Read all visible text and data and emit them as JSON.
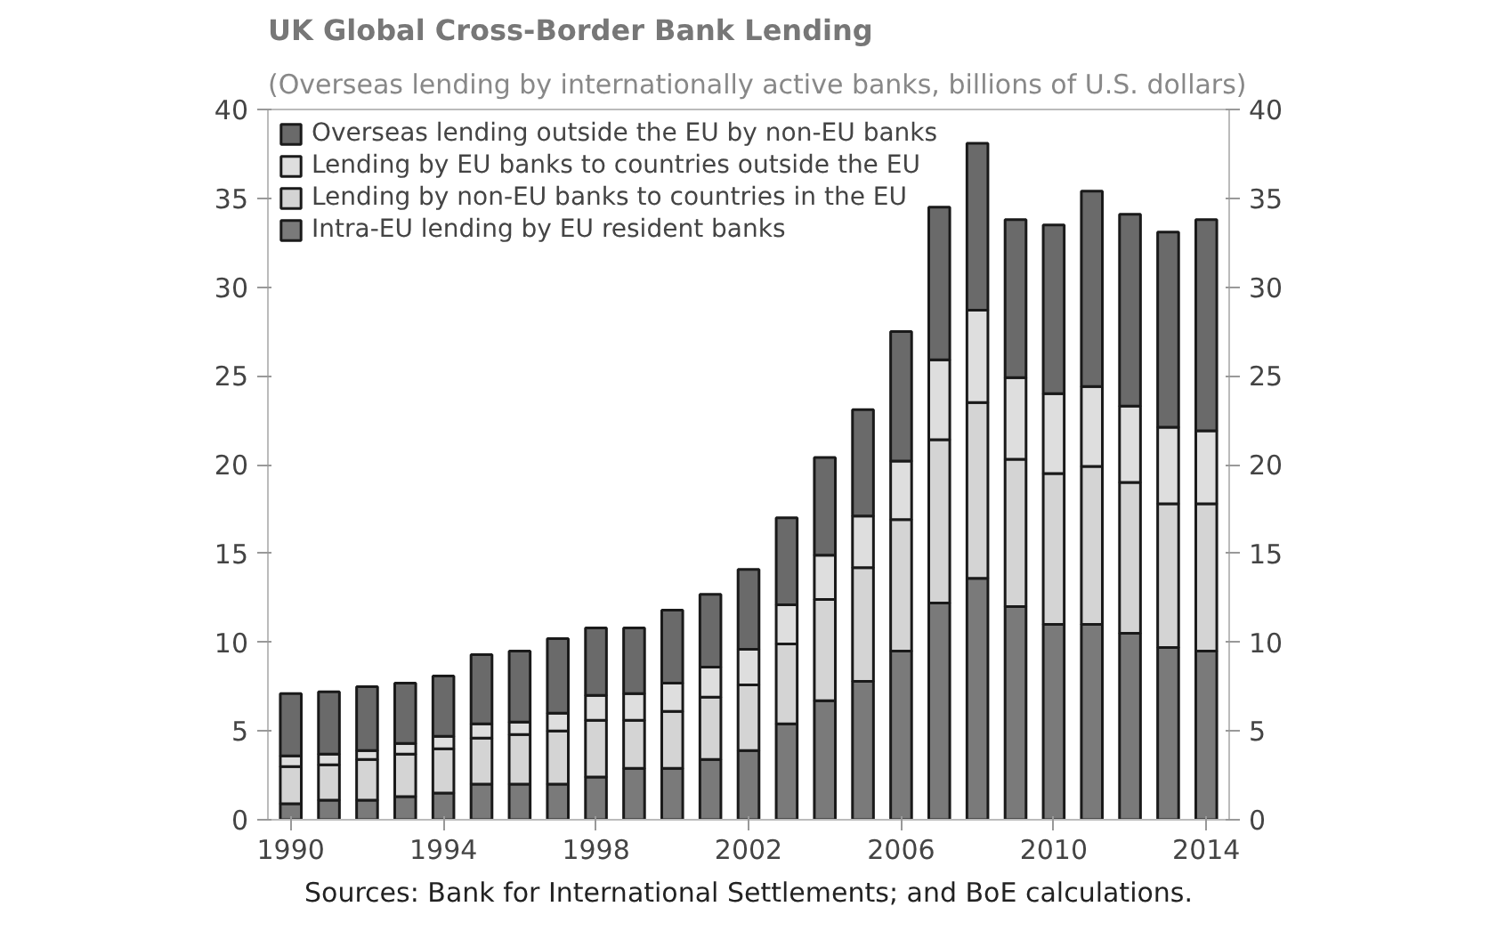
{
  "chart_data": {
    "type": "bar",
    "stacked": true,
    "title": "UK Global Cross-Border Bank Lending",
    "subtitle": "(Overseas lending by internationally active banks, billions of U.S. dollars)",
    "annotations": [
      "Sources: Bank for International Settlements; and BoE calculations."
    ],
    "x": [
      1990,
      1991,
      1992,
      1993,
      1994,
      1995,
      1996,
      1997,
      1998,
      1999,
      2000,
      2001,
      2002,
      2003,
      2004,
      2005,
      2006,
      2007,
      2008,
      2009,
      2010,
      2011,
      2012,
      2013,
      2014
    ],
    "xlim": [
      1989.4,
      2014.6
    ],
    "xticks": [
      1990,
      1994,
      1998,
      2002,
      2006,
      2010,
      2014
    ],
    "ylim": [
      0,
      40
    ],
    "yticks": [
      0,
      5,
      10,
      15,
      20,
      25,
      30,
      35,
      40
    ],
    "y2lim": [
      0,
      40
    ],
    "y2ticks": [
      0,
      5,
      10,
      15,
      20,
      25,
      30,
      35,
      40
    ],
    "grid": false,
    "legend": "top left",
    "series": [
      {
        "name": "Intra-EU lending by EU resident banks",
        "color": "#7a7a7a",
        "values": [
          0.9,
          1.1,
          1.1,
          1.3,
          1.5,
          2.0,
          2.0,
          2.0,
          2.4,
          2.9,
          2.9,
          3.4,
          3.9,
          5.4,
          6.7,
          7.8,
          9.5,
          12.2,
          13.6,
          12.0,
          11.0,
          11.0,
          10.5,
          9.7,
          9.5
        ]
      },
      {
        "name": "Lending by non-EU banks to countries in the EU",
        "color": "#d4d4d4",
        "values": [
          2.1,
          2.0,
          2.3,
          2.4,
          2.5,
          2.6,
          2.8,
          3.0,
          3.2,
          2.7,
          3.2,
          3.5,
          3.7,
          4.5,
          5.7,
          6.4,
          7.4,
          9.2,
          9.9,
          8.3,
          8.5,
          8.9,
          8.5,
          8.1,
          8.3
        ]
      },
      {
        "name": "Lending by EU banks to countries outside the EU",
        "color": "#dedede",
        "values": [
          0.6,
          0.6,
          0.5,
          0.6,
          0.7,
          0.8,
          0.7,
          1.0,
          1.4,
          1.5,
          1.6,
          1.7,
          2.0,
          2.2,
          2.5,
          2.9,
          3.3,
          4.5,
          5.2,
          4.6,
          4.5,
          4.5,
          4.3,
          4.3,
          4.1
        ]
      },
      {
        "name": "Overseas lending outside the EU by non-EU banks",
        "color": "#6a6a6a",
        "values": [
          3.5,
          3.5,
          3.6,
          3.4,
          3.4,
          3.9,
          4.0,
          4.2,
          3.8,
          3.7,
          4.1,
          4.1,
          4.5,
          4.9,
          5.5,
          6.0,
          7.3,
          8.6,
          9.4,
          8.9,
          9.5,
          11.0,
          10.8,
          11.0,
          11.9
        ]
      }
    ]
  }
}
